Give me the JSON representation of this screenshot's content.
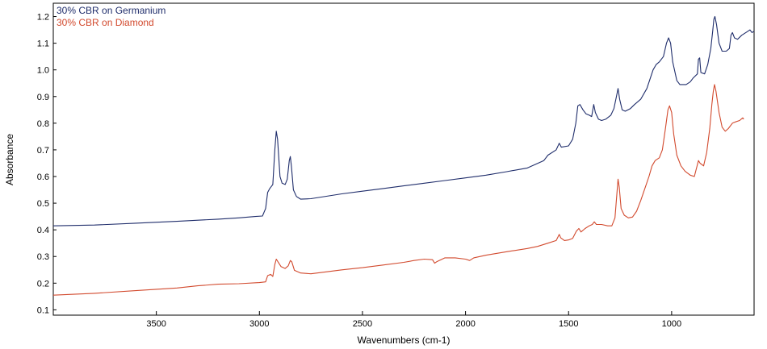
{
  "chart_data": {
    "type": "line",
    "xlabel": "Wavenumbers (cm-1)",
    "ylabel": "Absorbance",
    "xlim": [
      4000,
      600
    ],
    "ylim": [
      0.08,
      1.25
    ],
    "x_reversed": true,
    "grid": false,
    "legend_placement": "top-left",
    "x_ticks": [
      3500,
      3000,
      2500,
      2000,
      1500,
      1000
    ],
    "y_ticks": [
      0.1,
      0.2,
      0.3,
      0.4,
      0.5,
      0.6,
      0.7,
      0.8,
      0.9,
      1.0,
      1.1,
      1.2
    ],
    "y_tick_labels": [
      "0.1",
      "0.2",
      "0.3",
      "0.4",
      "0.5",
      "0.6",
      "0.7",
      "0.8",
      "0.9",
      "1.0",
      "1.1",
      "1.2"
    ],
    "series": [
      {
        "name": "30% CBR on Germanium",
        "color": "#1f2d6b",
        "points": [
          [
            4000,
            0.415
          ],
          [
            3800,
            0.418
          ],
          [
            3600,
            0.425
          ],
          [
            3400,
            0.432
          ],
          [
            3200,
            0.44
          ],
          [
            3100,
            0.445
          ],
          [
            3020,
            0.45
          ],
          [
            2985,
            0.452
          ],
          [
            2970,
            0.48
          ],
          [
            2960,
            0.54
          ],
          [
            2950,
            0.555
          ],
          [
            2935,
            0.57
          ],
          [
            2925,
            0.7
          ],
          [
            2918,
            0.77
          ],
          [
            2912,
            0.74
          ],
          [
            2900,
            0.6
          ],
          [
            2890,
            0.575
          ],
          [
            2875,
            0.57
          ],
          [
            2865,
            0.59
          ],
          [
            2855,
            0.66
          ],
          [
            2850,
            0.675
          ],
          [
            2845,
            0.64
          ],
          [
            2835,
            0.55
          ],
          [
            2820,
            0.525
          ],
          [
            2800,
            0.515
          ],
          [
            2750,
            0.517
          ],
          [
            2700,
            0.523
          ],
          [
            2600,
            0.535
          ],
          [
            2500,
            0.545
          ],
          [
            2400,
            0.555
          ],
          [
            2300,
            0.565
          ],
          [
            2200,
            0.575
          ],
          [
            2100,
            0.585
          ],
          [
            2000,
            0.595
          ],
          [
            1900,
            0.605
          ],
          [
            1800,
            0.618
          ],
          [
            1700,
            0.632
          ],
          [
            1620,
            0.66
          ],
          [
            1600,
            0.68
          ],
          [
            1560,
            0.7
          ],
          [
            1545,
            0.725
          ],
          [
            1535,
            0.71
          ],
          [
            1500,
            0.715
          ],
          [
            1480,
            0.74
          ],
          [
            1465,
            0.8
          ],
          [
            1455,
            0.865
          ],
          [
            1445,
            0.87
          ],
          [
            1430,
            0.85
          ],
          [
            1415,
            0.835
          ],
          [
            1400,
            0.83
          ],
          [
            1388,
            0.825
          ],
          [
            1378,
            0.87
          ],
          [
            1370,
            0.84
          ],
          [
            1355,
            0.815
          ],
          [
            1340,
            0.81
          ],
          [
            1320,
            0.815
          ],
          [
            1295,
            0.83
          ],
          [
            1280,
            0.855
          ],
          [
            1268,
            0.9
          ],
          [
            1260,
            0.93
          ],
          [
            1252,
            0.89
          ],
          [
            1240,
            0.85
          ],
          [
            1225,
            0.845
          ],
          [
            1200,
            0.855
          ],
          [
            1180,
            0.87
          ],
          [
            1150,
            0.89
          ],
          [
            1120,
            0.93
          ],
          [
            1090,
            1.0
          ],
          [
            1075,
            1.02
          ],
          [
            1060,
            1.03
          ],
          [
            1040,
            1.05
          ],
          [
            1025,
            1.1
          ],
          [
            1015,
            1.12
          ],
          [
            1005,
            1.1
          ],
          [
            995,
            1.03
          ],
          [
            975,
            0.96
          ],
          [
            960,
            0.945
          ],
          [
            930,
            0.945
          ],
          [
            910,
            0.955
          ],
          [
            895,
            0.97
          ],
          [
            875,
            0.985
          ],
          [
            870,
            1.04
          ],
          [
            864,
            1.045
          ],
          [
            858,
            0.99
          ],
          [
            840,
            0.985
          ],
          [
            825,
            1.02
          ],
          [
            810,
            1.08
          ],
          [
            800,
            1.15
          ],
          [
            795,
            1.19
          ],
          [
            790,
            1.2
          ],
          [
            782,
            1.17
          ],
          [
            770,
            1.1
          ],
          [
            755,
            1.07
          ],
          [
            735,
            1.07
          ],
          [
            720,
            1.08
          ],
          [
            712,
            1.13
          ],
          [
            705,
            1.14
          ],
          [
            695,
            1.12
          ],
          [
            680,
            1.115
          ],
          [
            660,
            1.13
          ],
          [
            640,
            1.14
          ],
          [
            620,
            1.15
          ],
          [
            610,
            1.14
          ],
          [
            600,
            1.145
          ]
        ]
      },
      {
        "name": "30% CBR on Diamond",
        "color": "#d24a2e",
        "points": [
          [
            4000,
            0.155
          ],
          [
            3800,
            0.162
          ],
          [
            3600,
            0.172
          ],
          [
            3400,
            0.182
          ],
          [
            3300,
            0.19
          ],
          [
            3200,
            0.196
          ],
          [
            3100,
            0.198
          ],
          [
            3000,
            0.202
          ],
          [
            2970,
            0.205
          ],
          [
            2960,
            0.228
          ],
          [
            2945,
            0.233
          ],
          [
            2935,
            0.225
          ],
          [
            2925,
            0.27
          ],
          [
            2918,
            0.29
          ],
          [
            2910,
            0.28
          ],
          [
            2895,
            0.262
          ],
          [
            2875,
            0.255
          ],
          [
            2860,
            0.265
          ],
          [
            2850,
            0.285
          ],
          [
            2843,
            0.28
          ],
          [
            2830,
            0.248
          ],
          [
            2800,
            0.238
          ],
          [
            2750,
            0.235
          ],
          [
            2700,
            0.24
          ],
          [
            2600,
            0.25
          ],
          [
            2500,
            0.258
          ],
          [
            2400,
            0.268
          ],
          [
            2300,
            0.278
          ],
          [
            2250,
            0.285
          ],
          [
            2200,
            0.29
          ],
          [
            2160,
            0.288
          ],
          [
            2150,
            0.275
          ],
          [
            2140,
            0.28
          ],
          [
            2100,
            0.295
          ],
          [
            2050,
            0.295
          ],
          [
            2000,
            0.29
          ],
          [
            1980,
            0.285
          ],
          [
            1960,
            0.295
          ],
          [
            1900,
            0.305
          ],
          [
            1800,
            0.318
          ],
          [
            1700,
            0.33
          ],
          [
            1650,
            0.338
          ],
          [
            1600,
            0.35
          ],
          [
            1560,
            0.36
          ],
          [
            1545,
            0.383
          ],
          [
            1538,
            0.37
          ],
          [
            1520,
            0.36
          ],
          [
            1500,
            0.362
          ],
          [
            1480,
            0.368
          ],
          [
            1462,
            0.395
          ],
          [
            1450,
            0.405
          ],
          [
            1440,
            0.392
          ],
          [
            1420,
            0.405
          ],
          [
            1400,
            0.415
          ],
          [
            1385,
            0.42
          ],
          [
            1375,
            0.43
          ],
          [
            1365,
            0.42
          ],
          [
            1340,
            0.42
          ],
          [
            1310,
            0.415
          ],
          [
            1290,
            0.415
          ],
          [
            1275,
            0.445
          ],
          [
            1265,
            0.54
          ],
          [
            1260,
            0.59
          ],
          [
            1254,
            0.56
          ],
          [
            1245,
            0.48
          ],
          [
            1230,
            0.455
          ],
          [
            1210,
            0.445
          ],
          [
            1190,
            0.448
          ],
          [
            1170,
            0.47
          ],
          [
            1150,
            0.51
          ],
          [
            1130,
            0.555
          ],
          [
            1110,
            0.6
          ],
          [
            1095,
            0.64
          ],
          [
            1080,
            0.66
          ],
          [
            1060,
            0.67
          ],
          [
            1045,
            0.7
          ],
          [
            1030,
            0.78
          ],
          [
            1018,
            0.85
          ],
          [
            1010,
            0.865
          ],
          [
            1000,
            0.84
          ],
          [
            990,
            0.76
          ],
          [
            975,
            0.68
          ],
          [
            955,
            0.64
          ],
          [
            935,
            0.62
          ],
          [
            910,
            0.605
          ],
          [
            890,
            0.6
          ],
          [
            878,
            0.635
          ],
          [
            870,
            0.66
          ],
          [
            862,
            0.65
          ],
          [
            845,
            0.64
          ],
          [
            830,
            0.69
          ],
          [
            815,
            0.78
          ],
          [
            805,
            0.87
          ],
          [
            798,
            0.92
          ],
          [
            792,
            0.945
          ],
          [
            785,
            0.92
          ],
          [
            770,
            0.84
          ],
          [
            755,
            0.785
          ],
          [
            740,
            0.77
          ],
          [
            725,
            0.78
          ],
          [
            705,
            0.8
          ],
          [
            690,
            0.805
          ],
          [
            670,
            0.81
          ],
          [
            655,
            0.82
          ],
          [
            650,
            0.815
          ]
        ]
      }
    ]
  }
}
